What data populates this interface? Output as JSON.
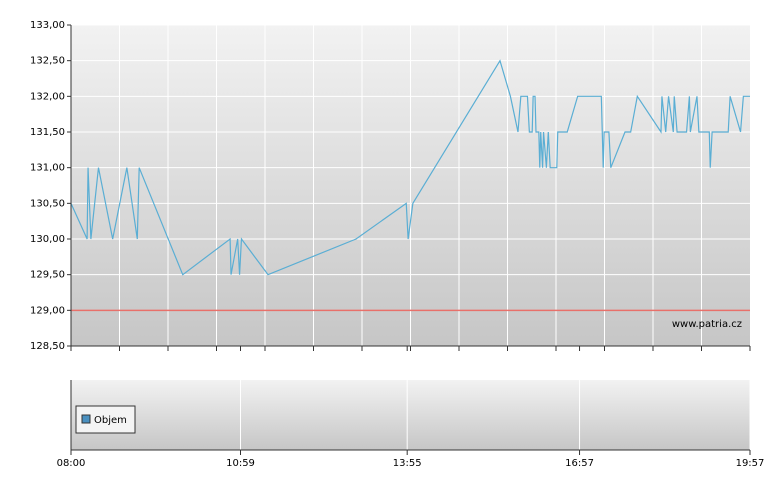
{
  "chart_data": {
    "type": "line",
    "x": [
      "08:00",
      "08:17",
      "08:18",
      "08:21",
      "08:29",
      "08:44",
      "08:59",
      "09:10",
      "09:12",
      "09:58",
      "10:48",
      "10:49",
      "10:56",
      "10:58",
      "11:00",
      "11:28",
      "13:01",
      "13:54",
      "13:56",
      "14:01",
      "15:33",
      "15:44",
      "15:52",
      "15:55",
      "16:02",
      "16:04",
      "16:07",
      "16:08",
      "16:10",
      "16:11",
      "16:14",
      "16:15",
      "16:16",
      "16:18",
      "16:19",
      "16:22",
      "16:24",
      "16:26",
      "16:33",
      "16:34",
      "16:44",
      "16:55",
      "17:20",
      "17:22",
      "17:23",
      "17:28",
      "17:30",
      "17:45",
      "17:51",
      "17:58",
      "18:23",
      "18:24",
      "18:28",
      "18:31",
      "18:36",
      "18:37",
      "18:40",
      "18:50",
      "18:53",
      "18:54",
      "19:01",
      "19:03",
      "19:14",
      "19:15",
      "19:17",
      "19:34",
      "19:36",
      "19:47",
      "19:50",
      "19:57"
    ],
    "series": [
      {
        "color": "#5aaed4",
        "values": [
          130.5,
          130.0,
          131.0,
          130.0,
          131.0,
          130.0,
          131.0,
          130.0,
          131.0,
          129.5,
          130.0,
          129.5,
          130.0,
          129.5,
          130.0,
          129.5,
          130.0,
          130.5,
          130.0,
          130.5,
          132.5,
          132.0,
          131.5,
          132.0,
          132.0,
          131.5,
          131.5,
          132.0,
          132.0,
          131.5,
          131.5,
          131.0,
          131.5,
          131.0,
          131.5,
          131.0,
          131.5,
          131.0,
          131.0,
          131.5,
          131.5,
          132.0,
          132.0,
          131.0,
          131.5,
          131.5,
          131.0,
          131.5,
          131.5,
          132.0,
          131.5,
          132.0,
          131.5,
          132.0,
          131.5,
          132.0,
          131.5,
          131.5,
          132.0,
          131.5,
          132.0,
          131.5,
          131.5,
          131.0,
          131.5,
          131.5,
          132.0,
          131.5,
          132.0,
          132.0
        ]
      }
    ],
    "ylim": [
      128.5,
      133.0
    ],
    "yticks": [
      {
        "value": 128.5,
        "label": "128,50"
      },
      {
        "value": 129.0,
        "label": "129,00"
      },
      {
        "value": 129.5,
        "label": "129,50"
      },
      {
        "value": 130.0,
        "label": "130,00"
      },
      {
        "value": 130.5,
        "label": "130,50"
      },
      {
        "value": 131.0,
        "label": "131,00"
      },
      {
        "value": 131.5,
        "label": "131,50"
      },
      {
        "value": 132.0,
        "label": "132,00"
      },
      {
        "value": 132.5,
        "label": "132,50"
      },
      {
        "value": 133.0,
        "label": "133,00"
      }
    ],
    "xlim": [
      "08:00",
      "19:57"
    ],
    "xticks": [
      "08:00",
      "10:59",
      "13:55",
      "16:57",
      "19:57"
    ],
    "reference_line": {
      "value": 129.0,
      "color": "#e8706a"
    },
    "watermark": "www.patria.cz",
    "volume_legend": {
      "name": "Objem",
      "color": "#4a90c0"
    },
    "grid": true
  }
}
